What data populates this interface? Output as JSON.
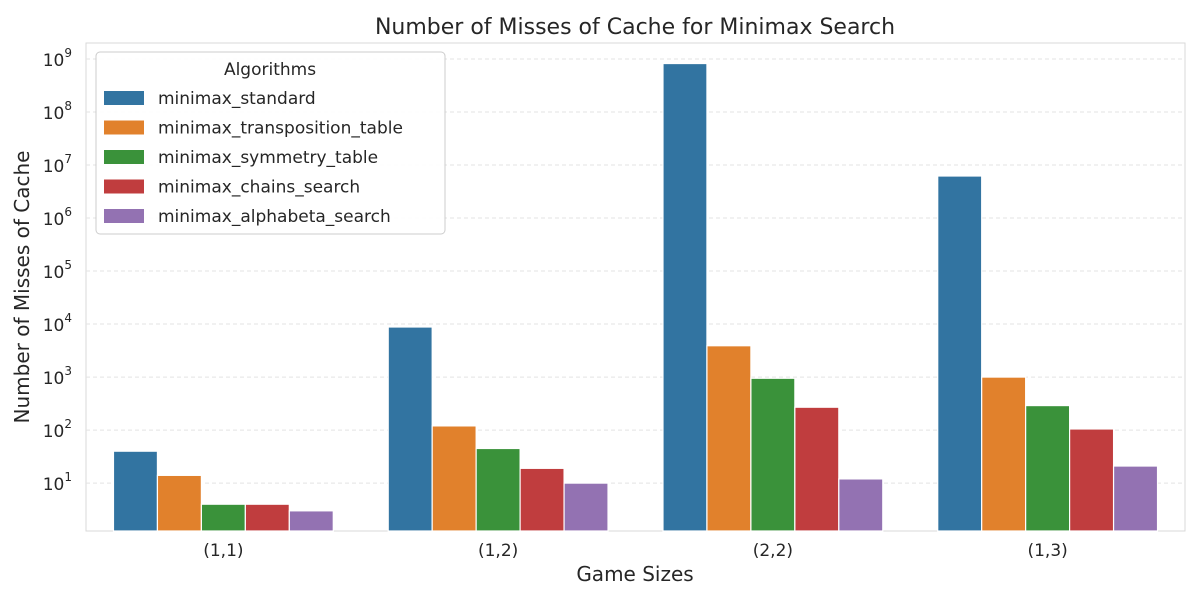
{
  "chart_data": {
    "type": "bar",
    "title": "Number of Misses of Cache for Minimax Search",
    "xlabel": "Game Sizes",
    "ylabel": "Number of Misses of Cache",
    "yscale": "log",
    "ylim": [
      1.25,
      2000000000
    ],
    "yticks": [
      1,
      2,
      3,
      4,
      5,
      6,
      7,
      8,
      9
    ],
    "grid": "y-dashed",
    "legend": {
      "title": "Algorithms",
      "position": "top-left"
    },
    "categories": [
      "(1,1)",
      "(1,2)",
      "(2,2)",
      "(1,3)"
    ],
    "series": [
      {
        "name": "minimax_standard",
        "color": "#3274a1",
        "values": [
          40,
          8800,
          820000000,
          6200000
        ]
      },
      {
        "name": "minimax_transposition_table",
        "color": "#e1812c",
        "values": [
          14,
          120,
          3900,
          1000
        ]
      },
      {
        "name": "minimax_symmetry_table",
        "color": "#3a923a",
        "values": [
          4,
          45,
          950,
          290
        ]
      },
      {
        "name": "minimax_chains_search",
        "color": "#c03d3e",
        "values": [
          4,
          19,
          270,
          105
        ]
      },
      {
        "name": "minimax_alphabeta_search",
        "color": "#9372b2",
        "values": [
          3,
          10,
          12,
          21
        ]
      }
    ]
  }
}
